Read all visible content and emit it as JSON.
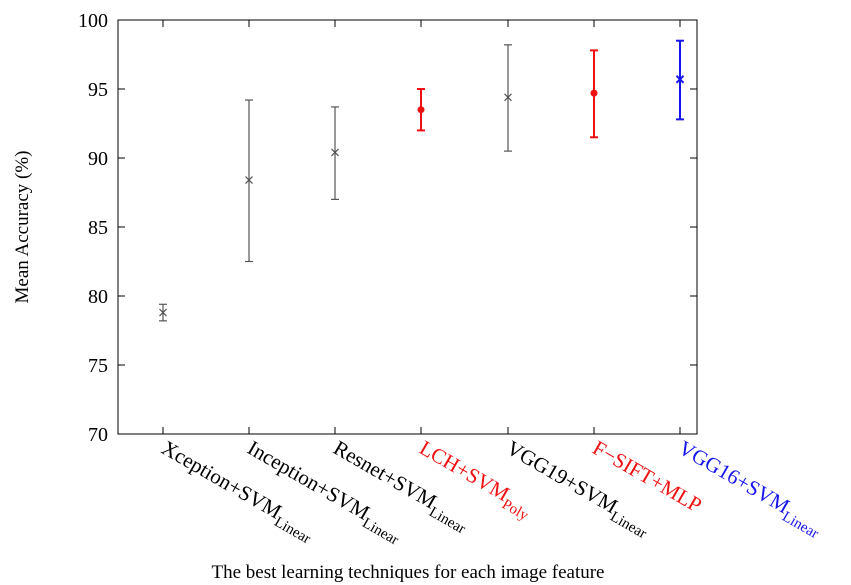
{
  "chart_data": {
    "type": "errorbar",
    "title": "",
    "xlabel": "The best learning techniques for each image feature",
    "ylabel": "Mean Accuracy (%)",
    "ylim": [
      70,
      100
    ],
    "yticks": [
      "70",
      "75",
      "80",
      "85",
      "90",
      "95",
      "100"
    ],
    "grid": false,
    "categories": [
      {
        "base": "Xception+SVM",
        "sub": "Linear"
      },
      {
        "base": "Inception+SVM",
        "sub": "Linear"
      },
      {
        "base": "Resnet+SVM",
        "sub": "Linear"
      },
      {
        "base": "LCH+SVM",
        "sub": "Poly"
      },
      {
        "base": "VGG19+SVM",
        "sub": "Linear"
      },
      {
        "base": "F−SIFT+MLP",
        "sub": ""
      },
      {
        "base": "VGG16+SVM",
        "sub": "Linear"
      }
    ],
    "points": [
      {
        "mean": 78.8,
        "low": 78.2,
        "high": 79.4,
        "marker": "x",
        "color": "#555555",
        "width": "thin"
      },
      {
        "mean": 88.4,
        "low": 82.5,
        "high": 94.2,
        "marker": "x",
        "color": "#555555",
        "width": "thin"
      },
      {
        "mean": 90.4,
        "low": 87.0,
        "high": 93.7,
        "marker": "x",
        "color": "#555555",
        "width": "thin"
      },
      {
        "mean": 93.5,
        "low": 92.0,
        "high": 95.0,
        "marker": "dot",
        "color": "#ee1111",
        "width": "thick"
      },
      {
        "mean": 94.4,
        "low": 90.5,
        "high": 98.2,
        "marker": "x",
        "color": "#555555",
        "width": "thin"
      },
      {
        "mean": 94.7,
        "low": 91.5,
        "high": 97.8,
        "marker": "dot",
        "color": "#ee1111",
        "width": "thick"
      },
      {
        "mean": 95.7,
        "low": 92.8,
        "high": 98.5,
        "marker": "x",
        "color": "#1515ee",
        "width": "thick"
      }
    ],
    "label_colors": [
      "#000000",
      "#000000",
      "#000000",
      "#ee1111",
      "#000000",
      "#ee1111",
      "#1515ee"
    ]
  }
}
